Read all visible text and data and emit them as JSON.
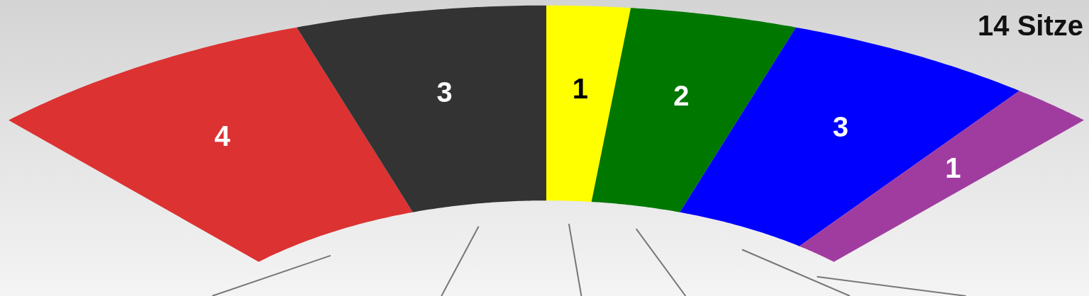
{
  "chart_data": {
    "type": "donut",
    "title": "14 Sitze",
    "categories": [
      null,
      null,
      null,
      null,
      null,
      null
    ],
    "values": [
      4,
      3,
      1,
      2,
      3,
      1
    ],
    "colors": [
      "#dc3232",
      "#333333",
      "#ffff00",
      "#007800",
      "#0000ff",
      "#a03ca0"
    ],
    "data_labels": true
  }
}
